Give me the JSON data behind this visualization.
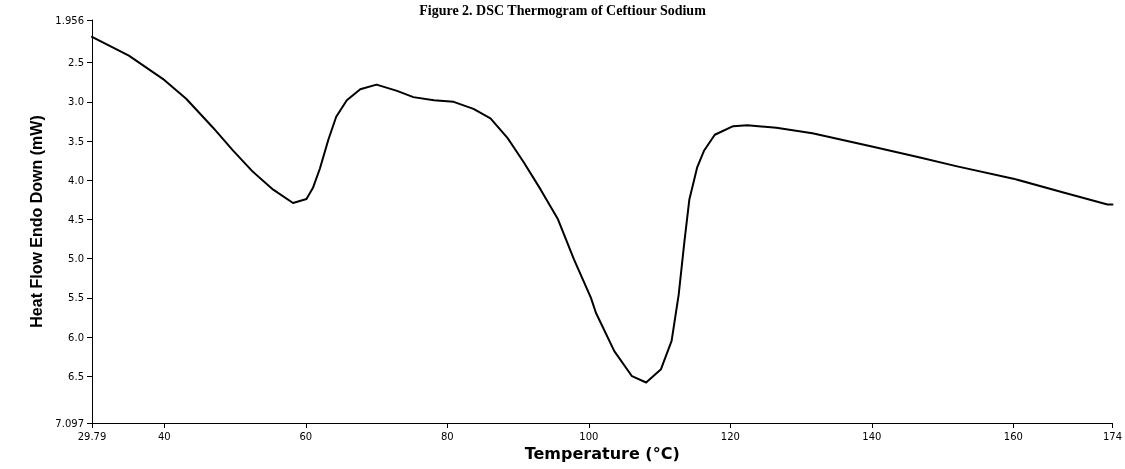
{
  "chart_data": {
    "type": "line",
    "title": "Figure 2. DSC Thermogram of Ceftiour Sodium",
    "xlabel": "Temperature (°C)",
    "ylabel": "Heat Flow Endo Down (mW)",
    "xlim": [
      29.79,
      174
    ],
    "xticks": [
      29.79,
      40,
      60,
      80,
      100,
      120,
      140,
      160,
      174
    ],
    "ylim": [
      7.097,
      1.956
    ],
    "yticks": [
      1.956,
      2.5,
      {
        "value": 3,
        "label": "3.0"
      },
      3.5,
      {
        "value": 4,
        "label": "4.0"
      },
      4.5,
      {
        "value": 5,
        "label": "5.0"
      },
      5.5,
      {
        "value": 6,
        "label": "6.0"
      },
      6.5,
      7.097
    ],
    "grid": false,
    "marker": "none",
    "line_style": "solid",
    "series": [
      {
        "color": "#000000",
        "x": [
          29.79,
          35,
          40,
          43.1,
          46.9,
          49.7,
          52.5,
          55.4,
          58.2,
          60.1,
          61,
          62,
          63.2,
          64.3,
          65.8,
          67.7,
          70,
          72.9,
          75.2,
          78.1,
          80.9,
          83.7,
          86.1,
          88.5,
          90.8,
          93.2,
          95.6,
          97.9,
          100.3,
          101,
          103.6,
          106.1,
          108.1,
          110.2,
          111.7,
          112.7,
          113.5,
          114.2,
          115.3,
          116.3,
          117.8,
          120.4,
          122.4,
          126.5,
          131.6,
          140,
          146.8,
          151.9,
          160,
          167.2,
          173.3,
          174
        ],
        "values": [
          2.17,
          2.41,
          2.72,
          2.96,
          3.33,
          3.62,
          3.89,
          4.12,
          4.29,
          4.24,
          4.1,
          3.85,
          3.48,
          3.19,
          2.98,
          2.84,
          2.78,
          2.86,
          2.94,
          2.98,
          3.0,
          3.09,
          3.21,
          3.46,
          3.77,
          4.12,
          4.49,
          5.01,
          5.5,
          5.69,
          6.18,
          6.5,
          6.58,
          6.41,
          6.05,
          5.46,
          4.79,
          4.25,
          3.84,
          3.62,
          3.42,
          3.31,
          3.3,
          3.33,
          3.4,
          3.57,
          3.71,
          3.82,
          3.98,
          4.16,
          4.31,
          4.31
        ]
      }
    ]
  }
}
